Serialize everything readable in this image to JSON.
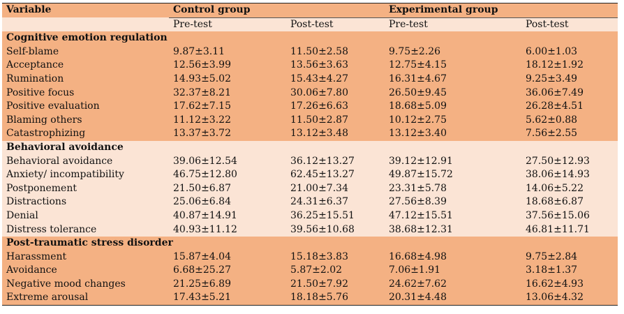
{
  "header": {
    "variable": "Variable",
    "control": "Control group",
    "experimental": "Experimental group",
    "pre": "Pre-test",
    "post": "Post-test"
  },
  "sections": [
    {
      "title": "Cognitive emotion regulation",
      "rows": [
        [
          "Self-blame",
          "9.87±3.11",
          "11.50±2.58",
          "9.75±2.26",
          "6.00±1.03"
        ],
        [
          "Acceptance",
          "12.56±3.99",
          "13.56±3.63",
          "12.75±4.15",
          "18.12±1.92"
        ],
        [
          "Rumination",
          "14.93±5.02",
          "15.43±4.27",
          "16.31±4.67",
          "9.25±3.49"
        ],
        [
          "Positive focus",
          "32.37±8.21",
          "30.06±7.80",
          "26.50±9.45",
          "36.06±7.49"
        ],
        [
          "Positive evaluation",
          "17.62±7.15",
          "17.26±6.63",
          "18.68±5.09",
          "26.28±4.51"
        ],
        [
          "Blaming others",
          "11.12±3.22",
          "11.50±2.87",
          "10.12±2.75",
          "5.62±0.88"
        ],
        [
          "Catastrophizing",
          "13.37±3.72",
          "13.12±3.48",
          "13.12±3.40",
          "7.56±2.55"
        ]
      ]
    },
    {
      "title": "Behavioral avoidance",
      "rows": [
        [
          "Behavioral avoidance",
          "39.06±12.54",
          "36.12±13.27",
          "39.12±12.91",
          "27.50±12.93"
        ],
        [
          "Anxiety/ incompatibility",
          "46.75±12.80",
          "62.45±13.27",
          "49.87±15.72",
          "38.06±14.93"
        ],
        [
          "Postponement",
          "21.50±6.87",
          "21.00±7.34",
          "23.31±5.78",
          "14.06±5.22"
        ],
        [
          "Distractions",
          "25.06±6.84",
          "24.31±6.37",
          "27.56±8.39",
          "18.68±6.87"
        ],
        [
          "Denial",
          "40.87±14.91",
          "36.25±15.51",
          "47.12±15.51",
          "37.56±15.06"
        ],
        [
          "Distress tolerance",
          "40.93±11.12",
          "39.56±10.68",
          "38.68±12.31",
          "46.81±11.71"
        ]
      ]
    },
    {
      "title": "Post-traumatic stress disorder",
      "rows": [
        [
          "Harassment",
          "15.87±4.04",
          "15.18±3.83",
          "16.68±4.98",
          "9.75±2.84"
        ],
        [
          "Avoidance",
          "6.68±25.27",
          "5.87±2.02",
          "7.06±1.91",
          "3.18±1.37"
        ],
        [
          "Negative mood changes",
          "21.25±6.89",
          "21.50±7.92",
          "24.62±7.62",
          "16.62±4.93"
        ],
        [
          "Extreme arousal",
          "17.43±5.21",
          "18.18±5.76",
          "20.31±4.48",
          "13.06±4.32"
        ]
      ]
    }
  ],
  "colors": {
    "dark_band": "#f4b183",
    "light_band": "#fbe4d5"
  }
}
